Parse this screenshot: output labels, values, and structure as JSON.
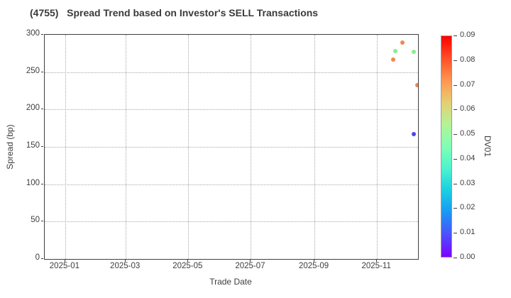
{
  "title": "(4755)   Spread Trend based on Investor's SELL Transactions",
  "chart_data": {
    "type": "scatter",
    "title": "(4755)   Spread Trend based on Investor's SELL Transactions",
    "xlabel": "Trade Date",
    "ylabel": "Spread (bp)",
    "xlim": [
      "2024-12-12",
      "2025-12-11"
    ],
    "ylim": [
      0,
      300
    ],
    "grid": true,
    "grid_style": "dotted",
    "x_ticks": [
      {
        "date": "2025-01-01",
        "label": "2025-01"
      },
      {
        "date": "2025-03-01",
        "label": "2025-03"
      },
      {
        "date": "2025-05-01",
        "label": "2025-05"
      },
      {
        "date": "2025-07-01",
        "label": "2025-07"
      },
      {
        "date": "2025-09-01",
        "label": "2025-09"
      },
      {
        "date": "2025-11-01",
        "label": "2025-11"
      }
    ],
    "y_ticks": [
      {
        "value": 0,
        "label": "0"
      },
      {
        "value": 50,
        "label": "50"
      },
      {
        "value": 100,
        "label": "100"
      },
      {
        "value": 150,
        "label": "150"
      },
      {
        "value": 200,
        "label": "200"
      },
      {
        "value": 250,
        "label": "250"
      },
      {
        "value": 300,
        "label": "300"
      }
    ],
    "points": [
      {
        "date": "2025-11-17",
        "spread": 267,
        "dv01": 0.07,
        "color": "#f6854e"
      },
      {
        "date": "2025-11-19",
        "spread": 278,
        "dv01": 0.05,
        "color": "#8aec90"
      },
      {
        "date": "2025-11-26",
        "spread": 290,
        "dv01": 0.07,
        "color": "#f6854e"
      },
      {
        "date": "2025-12-07",
        "spread": 277,
        "dv01": 0.05,
        "color": "#8aec90"
      },
      {
        "date": "2025-12-10",
        "spread": 233,
        "dv01": 0.07,
        "color": "#f6854e"
      },
      {
        "date": "2025-12-07",
        "spread": 167,
        "dv01": 0.01,
        "color": "#4847f0"
      }
    ],
    "colorbar": {
      "label": "DV01",
      "min": 0.0,
      "max": 0.09,
      "tick_labels": [
        "0.09",
        "0.08",
        "0.07",
        "0.06",
        "0.05",
        "0.04",
        "0.03",
        "0.02",
        "0.01",
        "0.00"
      ],
      "gradient_stops_bottom_to_top": [
        "#8000ff",
        "#4d4ffc",
        "#1a96f3",
        "#1acee3",
        "#4df3ce",
        "#80ffb4",
        "#b3f396",
        "#e6ce74",
        "#ff964f",
        "#ff4f28",
        "#ff0000"
      ]
    }
  }
}
